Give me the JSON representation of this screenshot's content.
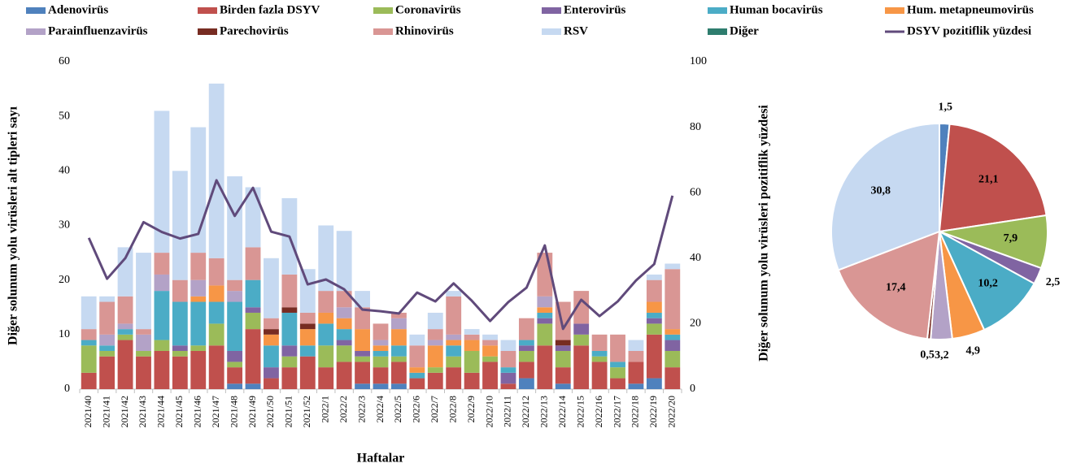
{
  "chart_data": [
    {
      "type": "bar",
      "stacked": true,
      "x_label": "Haftalar",
      "y_label": "Diğer solunum yolu virüsleri alt tipleri sayı",
      "categories": [
        "2021/40",
        "2021/41",
        "2021/42",
        "2021/43",
        "2021/44",
        "2021/45",
        "2021/46",
        "2021/47",
        "2021/48",
        "2021/49",
        "2021/50",
        "2021/51",
        "2021/52",
        "2022/1",
        "2022/2",
        "2022/3",
        "2022/4",
        "2022/5",
        "2022/6",
        "2022/7",
        "2022/8",
        "2022/9",
        "2022/10",
        "2022/11",
        "2022/12",
        "2022/13",
        "2022/14",
        "2022/15",
        "2022/16",
        "2022/17",
        "2022/18",
        "2022/19",
        "2022/20"
      ],
      "ylim": [
        0,
        60
      ],
      "yticks": [
        0,
        10,
        20,
        30,
        40,
        50,
        60
      ],
      "y2lim": [
        0,
        100
      ],
      "y2ticks": [
        0,
        20,
        40,
        60,
        80,
        100
      ],
      "series": [
        {
          "name": "Adenovirüs",
          "color": "#4f81bd",
          "values": [
            0,
            0,
            0,
            0,
            0,
            0,
            0,
            0,
            1,
            1,
            0,
            0,
            0,
            0,
            0,
            1,
            1,
            1,
            0,
            0,
            0,
            0,
            0,
            0,
            2,
            0,
            1,
            0,
            0,
            0,
            1,
            2,
            0
          ]
        },
        {
          "name": "Birden fazla DSYV",
          "color": "#c0504d",
          "values": [
            3,
            6,
            9,
            6,
            7,
            6,
            7,
            8,
            3,
            10,
            2,
            4,
            6,
            4,
            5,
            4,
            3,
            4,
            2,
            3,
            4,
            3,
            5,
            1,
            3,
            8,
            3,
            8,
            5,
            2,
            4,
            8,
            4
          ]
        },
        {
          "name": "Coronavirüs",
          "color": "#9bbb59",
          "values": [
            5,
            1,
            1,
            1,
            2,
            1,
            1,
            4,
            1,
            3,
            0,
            2,
            0,
            4,
            3,
            1,
            2,
            1,
            0,
            1,
            2,
            4,
            1,
            0,
            2,
            4,
            3,
            2,
            1,
            2,
            0,
            2,
            3
          ]
        },
        {
          "name": "Enterovirüs",
          "color": "#8064a2",
          "values": [
            0,
            0,
            0,
            0,
            0,
            1,
            0,
            0,
            2,
            1,
            2,
            2,
            0,
            0,
            1,
            1,
            0,
            0,
            0,
            0,
            0,
            0,
            0,
            2,
            1,
            1,
            1,
            2,
            0,
            0,
            0,
            1,
            2
          ]
        },
        {
          "name": "Human bocavirüs",
          "color": "#4bacc6",
          "values": [
            1,
            1,
            1,
            0,
            9,
            8,
            8,
            4,
            9,
            5,
            4,
            6,
            2,
            4,
            2,
            0,
            1,
            2,
            1,
            0,
            2,
            0,
            0,
            1,
            1,
            1,
            0,
            0,
            1,
            1,
            0,
            1,
            1
          ]
        },
        {
          "name": "Hum. metapneumovirüs",
          "color": "#f79646",
          "values": [
            0,
            0,
            0,
            0,
            0,
            0,
            1,
            3,
            0,
            0,
            2,
            0,
            3,
            2,
            2,
            4,
            1,
            3,
            1,
            4,
            1,
            2,
            2,
            0,
            0,
            1,
            0,
            0,
            0,
            0,
            0,
            2,
            1
          ]
        },
        {
          "name": "Parainfluenzavirüs",
          "color": "#b3a2c7",
          "values": [
            0,
            2,
            1,
            3,
            3,
            0,
            3,
            0,
            2,
            0,
            0,
            0,
            0,
            0,
            2,
            0,
            1,
            2,
            0,
            1,
            1,
            0,
            0,
            0,
            0,
            2,
            0,
            0,
            0,
            0,
            0,
            0,
            0
          ]
        },
        {
          "name": "Parechovirüs",
          "color": "#772c22",
          "values": [
            0,
            0,
            0,
            0,
            0,
            0,
            0,
            0,
            0,
            0,
            1,
            1,
            1,
            0,
            0,
            0,
            0,
            0,
            0,
            0,
            0,
            0,
            0,
            0,
            0,
            0,
            1,
            0,
            0,
            0,
            0,
            0,
            0
          ]
        },
        {
          "name": "Rhinovirüs",
          "color": "#d99694",
          "values": [
            2,
            6,
            5,
            1,
            4,
            4,
            5,
            5,
            2,
            6,
            2,
            6,
            2,
            4,
            3,
            4,
            3,
            1,
            4,
            2,
            7,
            1,
            1,
            3,
            4,
            8,
            7,
            6,
            3,
            5,
            2,
            4,
            11
          ]
        },
        {
          "name": "RSV",
          "color": "#c6d9f1",
          "values": [
            6,
            1,
            9,
            14,
            26,
            20,
            23,
            32,
            19,
            11,
            11,
            14,
            8,
            12,
            11,
            3,
            0,
            0,
            2,
            3,
            1,
            1,
            1,
            2,
            0,
            0,
            0,
            0,
            0,
            0,
            2,
            1,
            1
          ]
        },
        {
          "name": "Diğer",
          "color": "#2e7d6e",
          "values": [
            0,
            0,
            0,
            0,
            0,
            0,
            0,
            0,
            0,
            0,
            0,
            0,
            0,
            0,
            0,
            0,
            0,
            0,
            0,
            0,
            0,
            0,
            0,
            0,
            0,
            0,
            0,
            0,
            0,
            0,
            0,
            0,
            0
          ]
        },
        {
          "name": "DSYV pozitiflik yüzdesi",
          "color": "#604a7b",
          "type": "line",
          "axis": "y2",
          "values": [
            46.2,
            33.7,
            40,
            51,
            48,
            46,
            47.4,
            63.8,
            52.9,
            61.5,
            48.1,
            46.6,
            32,
            33.5,
            30.5,
            24.3,
            23.8,
            23.1,
            29.5,
            26.8,
            32.3,
            27,
            20.8,
            26.6,
            31,
            43.9,
            18.4,
            27.3,
            22.3,
            26.8,
            33.2,
            38.2,
            59.1
          ]
        }
      ]
    },
    {
      "type": "pie",
      "y_label": "Diğer solunum yolu virüsleri pozitiflik yüzdesi",
      "categories": [
        "Adenovirüs",
        "Birden fazla DSYV",
        "Coronavirüs",
        "Enterovirüs",
        "Human bocavirüs",
        "Hum. metapneumovirüs",
        "Parainfluenzavirüs",
        "Parechovirüs",
        "Rhinovirüs",
        "RSV"
      ],
      "colors": [
        "#4f81bd",
        "#c0504d",
        "#9bbb59",
        "#8064a2",
        "#4bacc6",
        "#f79646",
        "#b3a2c7",
        "#772c22",
        "#d99694",
        "#c6d9f1"
      ],
      "values": [
        1.5,
        21.1,
        7.9,
        2.5,
        10.2,
        4.9,
        3.2,
        0.5,
        17.4,
        30.8
      ],
      "value_labels": [
        "1,5",
        "21,1",
        "7,9",
        "2,5",
        "10,2",
        "4,9",
        "3,2",
        "0,5",
        "17,4",
        "30,8"
      ]
    }
  ]
}
